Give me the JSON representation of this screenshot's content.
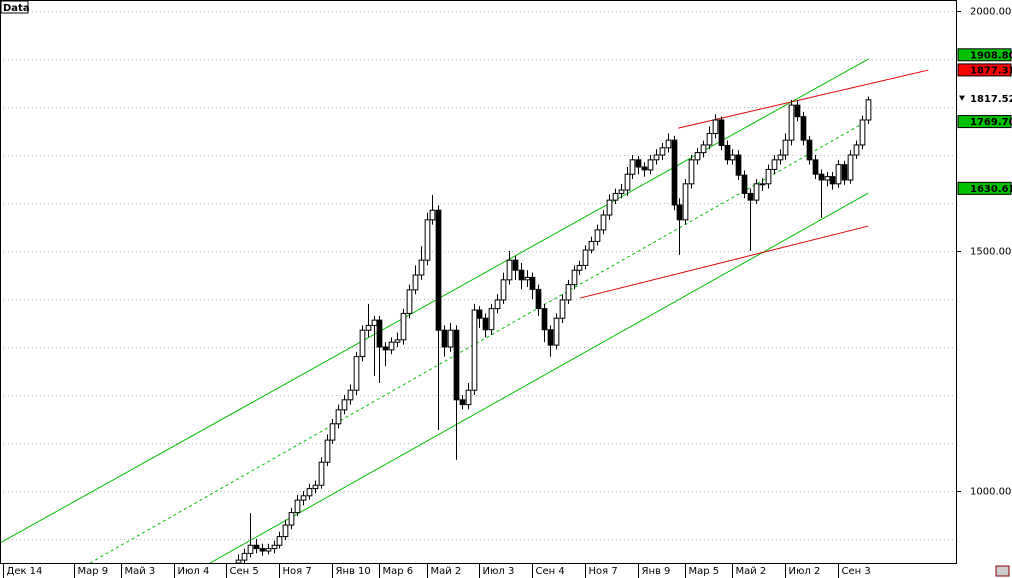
{
  "chart_data": {
    "type": "candlestick",
    "label": "Data",
    "xlim": [
      -0.5,
      162
    ],
    "ylim": [
      850,
      2023
    ],
    "grid": true,
    "xticks": [
      {
        "value": 0,
        "label": "Дек 14"
      },
      {
        "value": 12,
        "label": "Мар 9"
      },
      {
        "value": 20,
        "label": "Май 3"
      },
      {
        "value": 29,
        "label": "Июл 4"
      },
      {
        "value": 38,
        "label": "Сен 5"
      },
      {
        "value": 47,
        "label": "Ноя 7"
      },
      {
        "value": 56,
        "label": "Янв 10"
      },
      {
        "value": 64,
        "label": "Мар 6"
      },
      {
        "value": 72,
        "label": "Май 2"
      },
      {
        "value": 81,
        "label": "Июл 3"
      },
      {
        "value": 90,
        "label": "Сен 4"
      },
      {
        "value": 99,
        "label": "Ноя 7"
      },
      {
        "value": 108,
        "label": "Янв 9"
      },
      {
        "value": 116,
        "label": "Мар 5"
      },
      {
        "value": 124,
        "label": "Май 2"
      },
      {
        "value": 133,
        "label": "Июл 2"
      },
      {
        "value": 142,
        "label": "Сен 3"
      }
    ],
    "yticks": [
      {
        "value": 2000,
        "label": "2000.00"
      },
      {
        "value": 1900,
        "label": null
      },
      {
        "value": 1800,
        "label": null
      },
      {
        "value": 1700,
        "label": null
      },
      {
        "value": 1600,
        "label": null
      },
      {
        "value": 1500,
        "label": "1500.00"
      },
      {
        "value": 1400,
        "label": null
      },
      {
        "value": 1300,
        "label": null
      },
      {
        "value": 1200,
        "label": null
      },
      {
        "value": 1100,
        "label": null
      },
      {
        "value": 1000,
        "label": "1000.00"
      },
      {
        "value": 900,
        "label": null
      }
    ],
    "up_color": "#ffffff",
    "down_color": "#000000",
    "wick_color": "#000000",
    "x": [
      40,
      41,
      42,
      43,
      44,
      45,
      46,
      47,
      48,
      49,
      50,
      51,
      52,
      53,
      54,
      55,
      56,
      57,
      58,
      59,
      60,
      61,
      62,
      63,
      64,
      65,
      66,
      67,
      68,
      69,
      70,
      71,
      72,
      73,
      74,
      75,
      76,
      77,
      78,
      79,
      80,
      81,
      82,
      83,
      84,
      85,
      86,
      87,
      88,
      89,
      90,
      91,
      92,
      93,
      94,
      95,
      96,
      97,
      98,
      99,
      100,
      101,
      102,
      103,
      104,
      105,
      106,
      107,
      108,
      109,
      110,
      111,
      112,
      113,
      114,
      115,
      116,
      117,
      118,
      119,
      120,
      121,
      122,
      123,
      124,
      125,
      126,
      127,
      128,
      129,
      130,
      131,
      132,
      133,
      134,
      135,
      136,
      137,
      138,
      139,
      140,
      141,
      142,
      143,
      144,
      145,
      146,
      147
    ],
    "open": [
      850,
      856,
      870,
      887,
      880,
      875,
      880,
      887,
      905,
      929,
      955,
      981,
      990,
      1005,
      1012,
      1060,
      1106,
      1140,
      1169,
      1190,
      1210,
      1280,
      1335,
      1345,
      1356,
      1300,
      1294,
      1310,
      1315,
      1370,
      1419,
      1450,
      1481,
      1565,
      1585,
      1335,
      1300,
      1335,
      1190,
      1180,
      1210,
      1377,
      1360,
      1336,
      1380,
      1398,
      1440,
      1481,
      1460,
      1440,
      1445,
      1420,
      1380,
      1336,
      1304,
      1360,
      1398,
      1430,
      1460,
      1470,
      1502,
      1520,
      1544,
      1575,
      1606,
      1620,
      1627,
      1660,
      1690,
      1675,
      1669,
      1690,
      1700,
      1715,
      1731,
      1596,
      1565,
      1640,
      1690,
      1705,
      1721,
      1745,
      1773,
      1720,
      1690,
      1700,
      1658,
      1620,
      1606,
      1640,
      1640,
      1670,
      1690,
      1700,
      1731,
      1804,
      1780,
      1731,
      1690,
      1660,
      1648,
      1655,
      1640,
      1680,
      1648,
      1700,
      1721,
      1773
    ],
    "high": [
      868,
      880,
      954,
      900,
      890,
      890,
      897,
      915,
      940,
      965,
      992,
      1000,
      1015,
      1022,
      1070,
      1118,
      1150,
      1180,
      1200,
      1222,
      1290,
      1345,
      1390,
      1365,
      1365,
      1310,
      1320,
      1330,
      1380,
      1430,
      1470,
      1510,
      1580,
      1617,
      1595,
      1345,
      1350,
      1345,
      1200,
      1225,
      1390,
      1385,
      1370,
      1390,
      1410,
      1455,
      1500,
      1490,
      1475,
      1460,
      1455,
      1430,
      1390,
      1345,
      1370,
      1410,
      1440,
      1470,
      1480,
      1512,
      1530,
      1555,
      1585,
      1618,
      1630,
      1640,
      1675,
      1700,
      1698,
      1685,
      1700,
      1712,
      1725,
      1745,
      1740,
      1610,
      1650,
      1700,
      1715,
      1730,
      1760,
      1785,
      1780,
      1730,
      1712,
      1710,
      1668,
      1630,
      1650,
      1652,
      1680,
      1700,
      1712,
      1745,
      1815,
      1815,
      1790,
      1740,
      1700,
      1670,
      1665,
      1665,
      1690,
      1688,
      1710,
      1730,
      1782,
      1822
    ],
    "low": [
      840,
      848,
      862,
      870,
      865,
      868,
      870,
      880,
      898,
      920,
      948,
      970,
      982,
      995,
      1005,
      1052,
      1098,
      1130,
      1160,
      1180,
      1200,
      1270,
      1320,
      1240,
      1225,
      1260,
      1285,
      1300,
      1305,
      1360,
      1410,
      1440,
      1470,
      1555,
      1127,
      1280,
      1290,
      1065,
      1170,
      1170,
      1200,
      1340,
      1320,
      1325,
      1370,
      1390,
      1430,
      1440,
      1420,
      1425,
      1400,
      1365,
      1310,
      1280,
      1295,
      1350,
      1390,
      1420,
      1450,
      1462,
      1495,
      1512,
      1535,
      1565,
      1598,
      1610,
      1615,
      1650,
      1660,
      1655,
      1660,
      1680,
      1690,
      1705,
      1585,
      1492,
      1555,
      1630,
      1680,
      1695,
      1712,
      1735,
      1710,
      1680,
      1680,
      1648,
      1610,
      1500,
      1598,
      1625,
      1630,
      1660,
      1680,
      1690,
      1720,
      1770,
      1720,
      1680,
      1650,
      1569,
      1635,
      1628,
      1632,
      1638,
      1640,
      1692,
      1712,
      1765
    ],
    "close": [
      856,
      870,
      887,
      880,
      875,
      880,
      887,
      905,
      929,
      955,
      981,
      990,
      1005,
      1012,
      1060,
      1106,
      1140,
      1169,
      1190,
      1210,
      1280,
      1335,
      1345,
      1356,
      1300,
      1294,
      1310,
      1315,
      1370,
      1419,
      1450,
      1481,
      1565,
      1585,
      1335,
      1300,
      1335,
      1190,
      1180,
      1210,
      1377,
      1360,
      1336,
      1380,
      1398,
      1440,
      1481,
      1460,
      1440,
      1445,
      1420,
      1380,
      1336,
      1304,
      1360,
      1398,
      1430,
      1460,
      1470,
      1502,
      1520,
      1544,
      1575,
      1606,
      1620,
      1627,
      1660,
      1690,
      1675,
      1669,
      1690,
      1700,
      1715,
      1731,
      1596,
      1565,
      1640,
      1690,
      1705,
      1721,
      1745,
      1773,
      1720,
      1690,
      1700,
      1658,
      1620,
      1606,
      1640,
      1640,
      1670,
      1690,
      1700,
      1731,
      1804,
      1780,
      1731,
      1690,
      1660,
      1648,
      1655,
      1640,
      1680,
      1648,
      1700,
      1721,
      1773,
      1815
    ],
    "lines": [
      {
        "color": "#00c000",
        "dashed": false,
        "x": [
          -0.5,
          147.1
        ],
        "y": [
          891.7,
          1900
        ]
      },
      {
        "color": "#00c000",
        "dashed": true,
        "x": [
          14.8,
          145.7
        ],
        "y": [
          850,
          1762.5
        ]
      },
      {
        "color": "#00c000",
        "dashed": false,
        "x": [
          35.2,
          147.1
        ],
        "y": [
          850,
          1620.8
        ]
      },
      {
        "color": "#e00000",
        "dashed": false,
        "x": [
          114.8,
          157.3
        ],
        "y": [
          1756,
          1877
        ]
      },
      {
        "color": "#e00000",
        "dashed": false,
        "x": [
          98.1,
          147.1
        ],
        "y": [
          1402,
          1552
        ]
      }
    ],
    "price_labels": [
      {
        "value": 1908.8,
        "label": "1908.80",
        "color": "#00c000"
      },
      {
        "value": 1877.31,
        "label": "1877.31",
        "color": "#ff0000"
      },
      {
        "value": 1817.52,
        "label": "1817.52",
        "color": "#ffffff"
      },
      {
        "value": 1769.7,
        "label": "1769.70",
        "color": "#00c000"
      },
      {
        "value": 1630.61,
        "label": "1630.61",
        "color": "#00c000"
      }
    ]
  }
}
